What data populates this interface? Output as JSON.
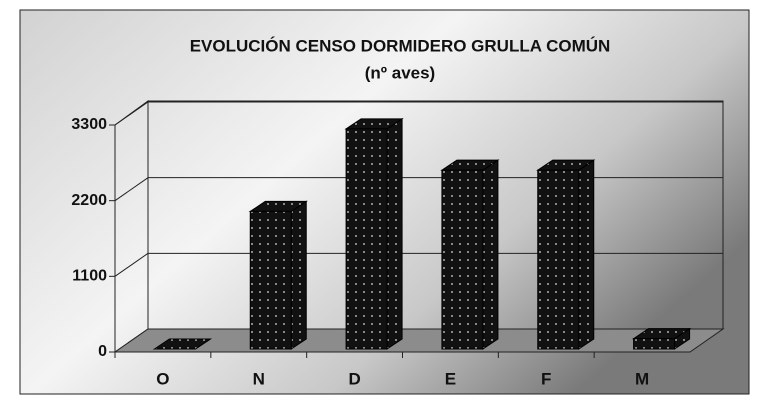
{
  "chart_data": {
    "type": "bar3d",
    "title": "EVOLUCIÓN CENSO DORMIDERO GRULLA COMÚN",
    "subtitle": "(nº aves)",
    "categories": [
      "O",
      "N",
      "D",
      "E",
      "F",
      "M"
    ],
    "values": [
      0,
      2000,
      3200,
      2600,
      2600,
      150
    ],
    "color": "#111111",
    "ylim": [
      0,
      3300
    ],
    "yticks": [
      0,
      1100,
      2200,
      3300
    ],
    "grid": true
  }
}
